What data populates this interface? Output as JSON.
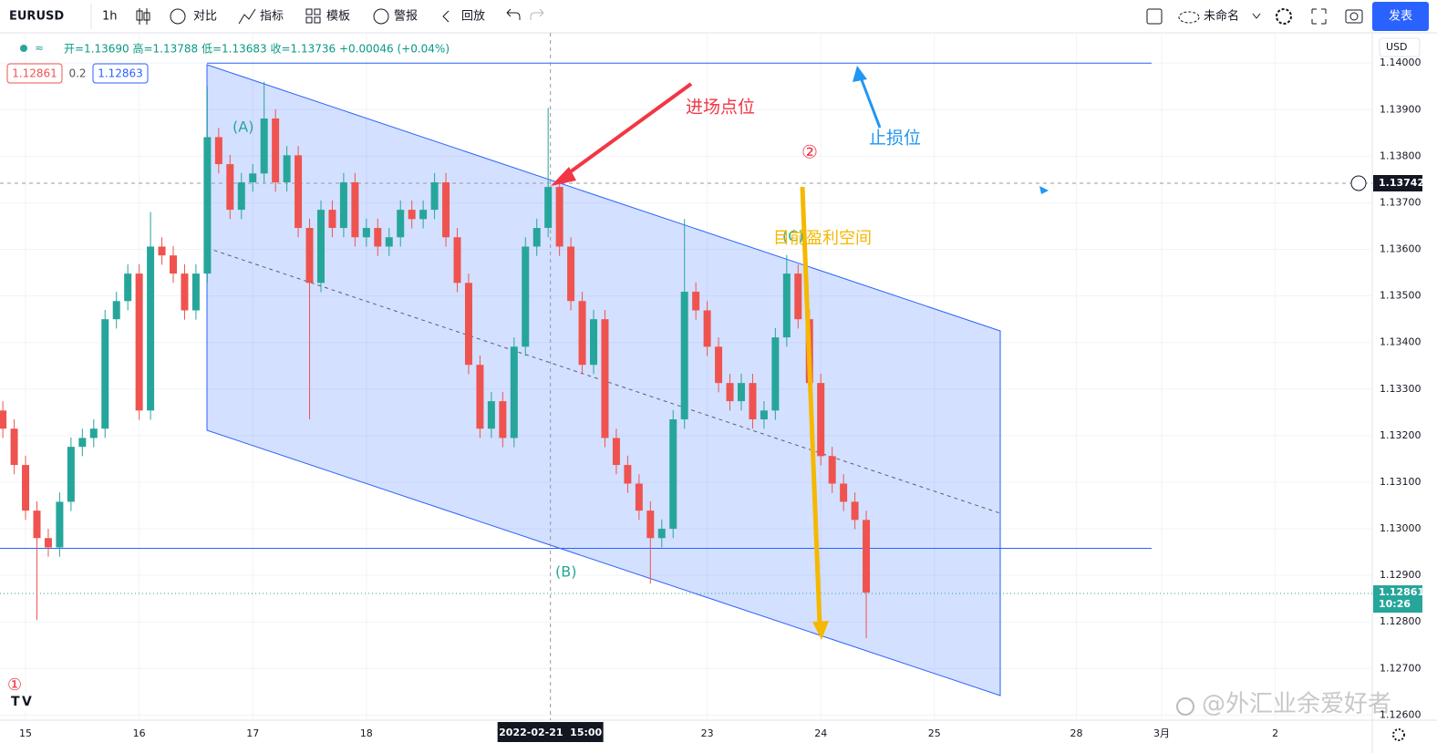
{
  "toolbar": {
    "symbol": "EURUSD",
    "interval": "1h",
    "compare": "对比",
    "indicators": "指标",
    "templates": "模板",
    "alert": "警报",
    "replay": "回放",
    "layout_name": "未命名",
    "publish": "发表"
  },
  "chart_data": {
    "type": "candlestick",
    "legend": "开=1.13690 高=1.13788 低=1.13683 收=1.13736 +0.00046 (+0.04%)",
    "bid": "1.12861",
    "spread": "0.2",
    "ask": "1.12863",
    "currency": "USD",
    "up_color": "#26a69a",
    "down_color": "#ef5350",
    "xlim": [
      -0.225,
      11.854
    ],
    "ylim": [
      1.12589,
      1.14065
    ],
    "xticks": [
      {
        "value": 0,
        "label": "15"
      },
      {
        "value": 1,
        "label": "16"
      },
      {
        "value": 2,
        "label": "17"
      },
      {
        "value": 3,
        "label": "18"
      },
      {
        "value": 6,
        "label": "23"
      },
      {
        "value": 7,
        "label": "24"
      },
      {
        "value": 8,
        "label": "25"
      },
      {
        "value": 9.25,
        "label": "28"
      },
      {
        "value": 10,
        "label": "3月"
      },
      {
        "value": 11,
        "label": "2"
      }
    ],
    "yticks": [
      {
        "value": 1.126,
        "label": "1.12600"
      },
      {
        "value": 1.127,
        "label": "1.12700"
      },
      {
        "value": 1.128,
        "label": "1.12800"
      },
      {
        "value": 1.129,
        "label": "1.12900"
      },
      {
        "value": 1.13,
        "label": "1.13000"
      },
      {
        "value": 1.131,
        "label": "1.13100"
      },
      {
        "value": 1.132,
        "label": "1.13200"
      },
      {
        "value": 1.133,
        "label": "1.13300"
      },
      {
        "value": 1.134,
        "label": "1.13400"
      },
      {
        "value": 1.135,
        "label": "1.13500"
      },
      {
        "value": 1.136,
        "label": "1.13600"
      },
      {
        "value": 1.137,
        "label": "1.13700"
      },
      {
        "value": 1.138,
        "label": "1.13800"
      },
      {
        "value": 1.139,
        "label": "1.13900"
      },
      {
        "value": 1.14,
        "label": "1.14000"
      }
    ],
    "grid": true,
    "x": [
      -0.2,
      -0.1,
      0,
      0.1,
      0.2,
      0.3,
      0.4,
      0.5,
      0.6,
      0.7,
      0.8,
      0.9,
      1,
      1.1,
      1.2,
      1.3,
      1.4,
      1.5,
      1.6,
      1.7,
      1.8,
      1.9,
      2,
      2.1,
      2.2,
      2.3,
      2.4,
      2.5,
      2.6,
      2.7,
      2.8,
      2.9,
      3,
      3.1,
      3.2,
      3.3,
      3.4,
      3.5,
      3.6,
      3.7,
      3.8,
      3.9,
      4,
      4.1,
      4.2,
      4.3,
      4.4,
      4.5,
      4.6,
      4.7,
      4.8,
      4.9,
      5,
      5.1,
      5.2,
      5.3,
      5.4,
      5.5,
      5.6,
      5.7,
      5.8,
      5.9,
      6,
      6.1,
      6.2,
      6.3,
      6.4,
      6.5,
      6.6,
      6.7,
      6.8,
      6.9,
      7,
      7.1,
      7.2,
      7.3,
      7.4
    ],
    "open": [
      1.13254,
      1.13215,
      1.13137,
      1.13039,
      1.1298,
      1.1296,
      1.13058,
      1.13176,
      1.13195,
      1.13215,
      1.1345,
      1.13489,
      1.13548,
      1.13254,
      1.13606,
      1.13587,
      1.13548,
      1.13469,
      1.13548,
      1.13841,
      1.13783,
      1.13685,
      1.13744,
      1.13763,
      1.13881,
      1.13744,
      1.13802,
      1.13646,
      1.13528,
      1.13685,
      1.13646,
      1.13744,
      1.13626,
      1.13646,
      1.13606,
      1.13626,
      1.13685,
      1.13665,
      1.13685,
      1.13744,
      1.13626,
      1.13528,
      1.13352,
      1.13215,
      1.13274,
      1.13195,
      1.13391,
      1.13606,
      1.13646,
      1.13734,
      1.13606,
      1.13489,
      1.13352,
      1.1345,
      1.13195,
      1.13137,
      1.13097,
      1.13039,
      1.1298,
      1.13,
      1.13235,
      1.13509,
      1.13469,
      1.13391,
      1.13313,
      1.13274,
      1.13313,
      1.13235,
      1.13254,
      1.13411,
      1.13548,
      1.1345,
      1.13313,
      1.13156,
      1.13097,
      1.13058,
      1.13019
    ],
    "high": [
      1.13274,
      1.13235,
      1.13157,
      1.13059,
      1.13,
      1.13078,
      1.13196,
      1.13215,
      1.13235,
      1.1347,
      1.13509,
      1.13568,
      1.13568,
      1.1368,
      1.13626,
      1.13607,
      1.13568,
      1.13568,
      1.1395,
      1.13861,
      1.13803,
      1.13764,
      1.13783,
      1.1396,
      1.13901,
      1.13822,
      1.13822,
      1.13666,
      1.13705,
      1.13705,
      1.13764,
      1.13764,
      1.13666,
      1.13666,
      1.13646,
      1.13705,
      1.13705,
      1.13705,
      1.13764,
      1.13764,
      1.13646,
      1.13548,
      1.13372,
      1.13294,
      1.13294,
      1.13411,
      1.13626,
      1.13666,
      1.13904,
      1.13754,
      1.13626,
      1.13509,
      1.1347,
      1.1347,
      1.13215,
      1.13157,
      1.13117,
      1.13059,
      1.1302,
      1.13255,
      1.13665,
      1.13529,
      1.13489,
      1.13411,
      1.13333,
      1.13333,
      1.13333,
      1.13274,
      1.13431,
      1.13588,
      1.13568,
      1.1347,
      1.13333,
      1.13176,
      1.13117,
      1.13078,
      1.13039
    ],
    "low": [
      1.13195,
      1.13117,
      1.13019,
      1.12804,
      1.1294,
      1.1294,
      1.13038,
      1.13156,
      1.13175,
      1.13195,
      1.1343,
      1.13469,
      1.13234,
      1.13234,
      1.13567,
      1.13528,
      1.13449,
      1.13449,
      1.13528,
      1.13763,
      1.13665,
      1.13665,
      1.13724,
      1.13743,
      1.13724,
      1.13724,
      1.13626,
      1.13235,
      1.13508,
      1.13626,
      1.13626,
      1.13606,
      1.13606,
      1.13586,
      1.13586,
      1.13606,
      1.13645,
      1.13645,
      1.13665,
      1.13606,
      1.13508,
      1.13332,
      1.13195,
      1.13195,
      1.13175,
      1.13175,
      1.13371,
      1.13586,
      1.13626,
      1.13586,
      1.13469,
      1.13332,
      1.13332,
      1.13175,
      1.13117,
      1.13077,
      1.13019,
      1.12882,
      1.1296,
      1.1298,
      1.13215,
      1.13449,
      1.13371,
      1.13293,
      1.13254,
      1.13254,
      1.13215,
      1.13215,
      1.13234,
      1.13391,
      1.1343,
      1.13293,
      1.13136,
      1.13077,
      1.13038,
      1.12999,
      1.12765
    ],
    "close": [
      1.13215,
      1.13137,
      1.13039,
      1.1298,
      1.1296,
      1.13058,
      1.13176,
      1.13195,
      1.13215,
      1.1345,
      1.13489,
      1.13548,
      1.13254,
      1.13606,
      1.13587,
      1.13548,
      1.13469,
      1.13548,
      1.13841,
      1.13783,
      1.13685,
      1.13744,
      1.13763,
      1.13881,
      1.13744,
      1.13802,
      1.13646,
      1.13528,
      1.13685,
      1.13646,
      1.13744,
      1.13626,
      1.13646,
      1.13606,
      1.13626,
      1.13685,
      1.13665,
      1.13685,
      1.13744,
      1.13626,
      1.13528,
      1.13352,
      1.13215,
      1.13274,
      1.13195,
      1.13391,
      1.13606,
      1.13646,
      1.13734,
      1.13606,
      1.13489,
      1.13352,
      1.1345,
      1.13195,
      1.13137,
      1.13097,
      1.13039,
      1.1298,
      1.13,
      1.13235,
      1.13509,
      1.13469,
      1.13391,
      1.13313,
      1.13274,
      1.13313,
      1.13235,
      1.13254,
      1.13411,
      1.13548,
      1.1345,
      1.13313,
      1.13156,
      1.13097,
      1.13058,
      1.13019,
      1.12863
    ],
    "horizontal_lines": [
      1.14,
      1.12958
    ],
    "crosshair": {
      "x": 4.62,
      "x_label": "2022-02-21  15:00",
      "price": 1.13742
    },
    "last_price": {
      "value": 1.12861,
      "countdown": "10:26"
    },
    "annotations": {
      "wave_a": "(A)",
      "wave_b": "(B)",
      "wave_c": "(C)",
      "entry": "进场点位",
      "stop_loss": "止损位",
      "profit": "目前盈利空间",
      "mark_2": "②",
      "mark_1": "①"
    },
    "watermark": "@外汇业余爱好者"
  }
}
